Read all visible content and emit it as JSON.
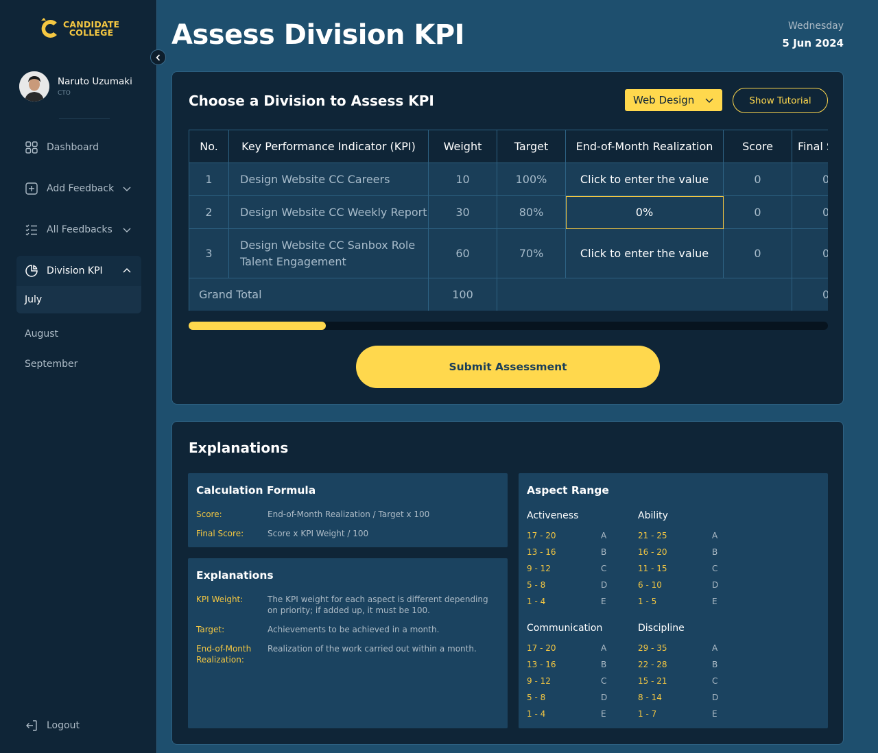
{
  "brand": {
    "line1": "CANDIDATE",
    "line2": "COLLEGE"
  },
  "user": {
    "name": "Naruto Uzumaki",
    "role": "CTO"
  },
  "nav": {
    "dashboard": "Dashboard",
    "add_feedback": "Add Feedback",
    "all_feedbacks": "All Feedbacks",
    "division_kpi": "Division KPI",
    "months": [
      "July",
      "August",
      "September"
    ],
    "logout": "Logout"
  },
  "header": {
    "title": "Assess Division KPI",
    "day": "Wednesday",
    "date": "5 Jun 2024"
  },
  "kpi_card": {
    "title": "Choose a Division to Assess KPI",
    "division": "Web Design",
    "tutorial_label": "Show Tutorial",
    "columns": [
      "No.",
      "Key Performance Indicator (KPI)",
      "Weight",
      "Target",
      "End-of-Month Realization",
      "Score",
      "Final Score"
    ],
    "rows": [
      {
        "no": "1",
        "kpi": "Design Website CC Careers",
        "weight": "10",
        "target": "100%",
        "realization": "Click to enter the value",
        "score": "0",
        "final": "0"
      },
      {
        "no": "2",
        "kpi": "Design Website CC Weekly Report",
        "weight": "30",
        "target": "80%",
        "realization": "0%",
        "score": "0",
        "final": "0"
      },
      {
        "no": "3",
        "kpi": "Design Website CC Sanbox Role Talent Engagement",
        "weight": "60",
        "target": "70%",
        "realization": "Click to enter the value",
        "score": "0",
        "final": "0"
      }
    ],
    "grand_total": {
      "label": "Grand Total",
      "weight": "100",
      "final": "0"
    },
    "submit_label": "Submit Assessment"
  },
  "explanations": {
    "title": "Explanations",
    "formula": {
      "title": "Calculation Formula",
      "items": [
        {
          "key": "Score:",
          "value": "End-of-Month Realization / Target x 100"
        },
        {
          "key": "Final Score:",
          "value": "Score x KPI Weight / 100"
        }
      ]
    },
    "terms": {
      "title": "Explanations",
      "items": [
        {
          "key": "KPI Weight:",
          "value": "The KPI weight for each aspect is different depending on priority; if added up, it must be 100."
        },
        {
          "key": "Target:",
          "value": "Achievements to be achieved in a month."
        },
        {
          "key": "End-of-Month Realization:",
          "value": "Realization of the work carried out within a month."
        }
      ]
    },
    "aspect": {
      "title": "Aspect Range",
      "groups": [
        {
          "name": "Activeness",
          "ranges": [
            [
              "17 - 20",
              "A"
            ],
            [
              "13 - 16",
              "B"
            ],
            [
              "9 - 12",
              "C"
            ],
            [
              "5 - 8",
              "D"
            ],
            [
              "1 - 4",
              "E"
            ]
          ]
        },
        {
          "name": "Ability",
          "ranges": [
            [
              "21 - 25",
              "A"
            ],
            [
              "16 - 20",
              "B"
            ],
            [
              "11 - 15",
              "C"
            ],
            [
              "6 - 10",
              "D"
            ],
            [
              "1 - 5",
              "E"
            ]
          ]
        },
        {
          "name": "Communication",
          "ranges": [
            [
              "17 - 20",
              "A"
            ],
            [
              "13 - 16",
              "B"
            ],
            [
              "9 - 12",
              "C"
            ],
            [
              "5 - 8",
              "D"
            ],
            [
              "1 - 4",
              "E"
            ]
          ]
        },
        {
          "name": "Discipline",
          "ranges": [
            [
              "29 - 35",
              "A"
            ],
            [
              "22 - 28",
              "B"
            ],
            [
              "15 - 21",
              "C"
            ],
            [
              "8 - 14",
              "D"
            ],
            [
              "1 - 7",
              "E"
            ]
          ]
        }
      ]
    }
  },
  "colors": {
    "accent": "#ffd84d",
    "sidebar": "#0f2537",
    "background": "#1e4f6e",
    "panel": "#1b4360"
  }
}
